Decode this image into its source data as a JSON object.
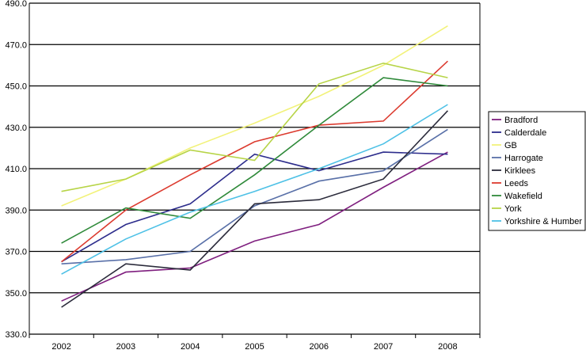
{
  "chart_data": {
    "type": "line",
    "title": "",
    "xlabel": "",
    "ylabel": "",
    "categories": [
      "2002",
      "2003",
      "2004",
      "2005",
      "2006",
      "2007",
      "2008"
    ],
    "ylim": [
      330,
      490
    ],
    "yticks": [
      "330.0",
      "350.0",
      "370.0",
      "390.0",
      "410.0",
      "430.0",
      "450.0",
      "470.0",
      "490.0"
    ],
    "grid": "horizontal",
    "legend_position": "right",
    "series": [
      {
        "name": "Bradford",
        "color": "#7f1f7f",
        "values": [
          346,
          360,
          362,
          375,
          383,
          401,
          418
        ]
      },
      {
        "name": "Calderdale",
        "color": "#2d2d8c",
        "values": [
          365,
          383,
          393,
          417,
          409,
          418,
          417
        ]
      },
      {
        "name": "GB",
        "color": "#f2f27a",
        "values": [
          392,
          405,
          420,
          432,
          445,
          460,
          479
        ]
      },
      {
        "name": "Harrogate",
        "color": "#5970a8",
        "values": [
          364,
          366,
          370,
          392,
          404,
          409,
          429
        ]
      },
      {
        "name": "Kirklees",
        "color": "#2b2b3b",
        "values": [
          343,
          364,
          361,
          393,
          395,
          405,
          438
        ]
      },
      {
        "name": "Leeds",
        "color": "#dc3b2f",
        "values": [
          365,
          390,
          407,
          423,
          431,
          433,
          462
        ]
      },
      {
        "name": "Wakefield",
        "color": "#2f8a3a",
        "values": [
          374,
          391,
          386,
          407,
          431,
          454,
          450
        ]
      },
      {
        "name": "York",
        "color": "#b7d447",
        "values": [
          399,
          405,
          419,
          414,
          451,
          461,
          454
        ]
      },
      {
        "name": "Yorkshire & Humber",
        "color": "#4ec1e6",
        "values": [
          359,
          376,
          389,
          399,
          410,
          422,
          441
        ]
      }
    ]
  }
}
